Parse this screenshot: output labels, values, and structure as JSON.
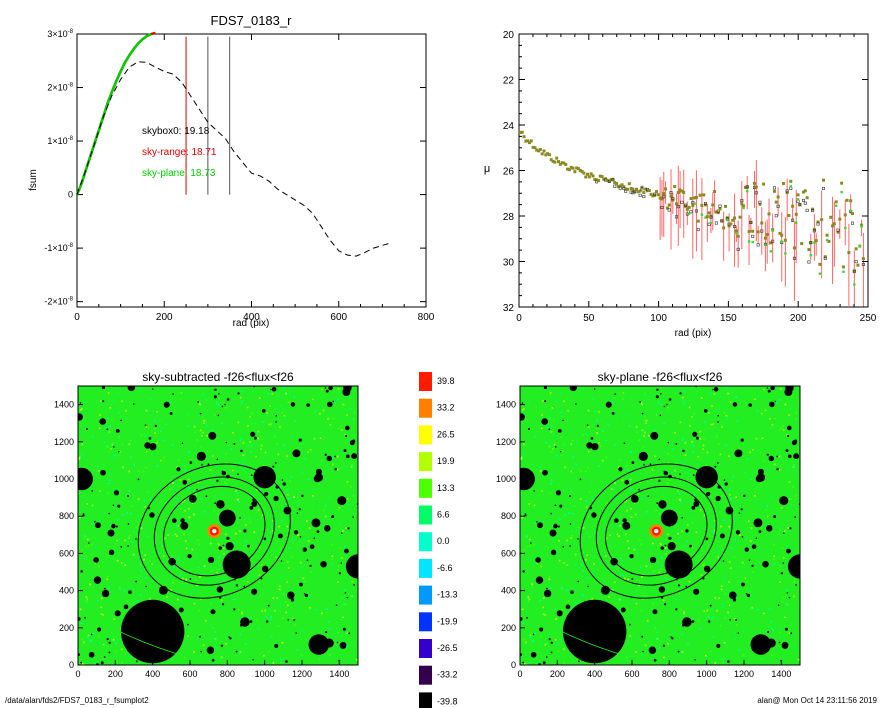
{
  "window": {
    "title": "FDS7_0183_r_fsumplot2"
  },
  "footer": {
    "path": "/data/alan/fds2/FDS7_0183_r_fsumplot2",
    "user_time": "alan@  Mon Oct 14 23:11:56 2019"
  },
  "colorbar": {
    "labels": [
      "39.8",
      "33.2",
      "26.5",
      "19.9",
      "13.3",
      "6.6",
      "0.0",
      "-6.6",
      "-13.3",
      "-19.9",
      "-26.5",
      "-33.2",
      "-39.8"
    ],
    "colors": [
      "#ff1a00",
      "#ff8000",
      "#ffff00",
      "#b2ff00",
      "#4dff00",
      "#00ff66",
      "#00ffcc",
      "#00e6ff",
      "#0099ff",
      "#0033ff",
      "#3300cc",
      "#33004d",
      "#000000"
    ]
  },
  "chart_data": [
    {
      "type": "line",
      "title": "FDS7_0183_r",
      "xlabel": "rad (pix)",
      "ylabel": "fsum",
      "xlim": [
        0,
        800
      ],
      "ylim": [
        -2.1e-08,
        3e-08
      ],
      "xticks": [
        0,
        200,
        400,
        600,
        800
      ],
      "yticks": [
        {
          "v": 3e-08,
          "m": "3",
          "e": "-8"
        },
        {
          "v": 2e-08,
          "m": "2",
          "e": "-8"
        },
        {
          "v": 1e-08,
          "m": "1",
          "e": "-8"
        },
        {
          "v": 0,
          "m": "0",
          "e": ""
        },
        {
          "v": -1e-08,
          "m": "-1",
          "e": "-8"
        },
        {
          "v": -2e-08,
          "m": "-2",
          "e": "-8"
        }
      ],
      "annotations": [
        {
          "text": "skybox0: 19.18",
          "color": "#000000"
        },
        {
          "text": "sky-range: 18.71",
          "color": "#e00000"
        },
        {
          "text": "sky-plane: 18.73",
          "color": "#00cc00"
        }
      ],
      "vlines": [
        {
          "x": 250,
          "color": "#e00000"
        },
        {
          "x": 300,
          "color": "#555555"
        },
        {
          "x": 350,
          "color": "#555555"
        }
      ],
      "series": [
        {
          "color": "#e00000",
          "style": "solid",
          "x": [
            0,
            10,
            20,
            30,
            40,
            50,
            60,
            70,
            80,
            90,
            100,
            110,
            120,
            130,
            140,
            150,
            160,
            170,
            180
          ],
          "y": [
            0,
            2e-09,
            4.5e-09,
            7e-09,
            9.5e-09,
            1.2e-08,
            1.45e-08,
            1.7e-08,
            1.92e-08,
            2.12e-08,
            2.3e-08,
            2.47e-08,
            2.6e-08,
            2.72e-08,
            2.82e-08,
            2.9e-08,
            2.96e-08,
            3e-08,
            3.02e-08
          ]
        },
        {
          "color": "#00cc00",
          "style": "solid",
          "x": [
            0,
            10,
            20,
            30,
            40,
            50,
            60,
            70,
            80,
            90,
            100,
            110,
            120,
            130,
            140,
            150,
            160,
            170
          ],
          "y": [
            0,
            2e-09,
            4.5e-09,
            7e-09,
            9.5e-09,
            1.2e-08,
            1.45e-08,
            1.7e-08,
            1.92e-08,
            2.12e-08,
            2.3e-08,
            2.47e-08,
            2.6e-08,
            2.72e-08,
            2.82e-08,
            2.9e-08,
            2.96e-08,
            3e-08
          ]
        },
        {
          "color": "#000000",
          "style": "dashed",
          "x": [
            0,
            20,
            40,
            60,
            80,
            100,
            120,
            140,
            160,
            180,
            200,
            220,
            240,
            260,
            280,
            300,
            320,
            340,
            360,
            380,
            400,
            420,
            440,
            460,
            480,
            500,
            520,
            540,
            560,
            580,
            600,
            620,
            640,
            660,
            680,
            700,
            720
          ],
          "y": [
            0,
            4.5e-09,
            9.5e-09,
            1.45e-08,
            1.85e-08,
            2.15e-08,
            2.38e-08,
            2.48e-08,
            2.47e-08,
            2.38e-08,
            2.3e-08,
            2.25e-08,
            2.1e-08,
            1.85e-08,
            1.6e-08,
            1.35e-08,
            1.2e-08,
            1.05e-08,
            8e-09,
            6e-09,
            4e-09,
            3.5e-09,
            2.5e-09,
            1e-09,
            0,
            -1e-09,
            -2e-09,
            -3.5e-09,
            -6e-09,
            -8.5e-09,
            -1.05e-08,
            -1.13e-08,
            -1.15e-08,
            -1.08e-08,
            -1e-08,
            -9.5e-09,
            -9e-09
          ]
        }
      ]
    },
    {
      "type": "scatter",
      "title": "",
      "xlabel": "rad (pix)",
      "ylabel": "μ",
      "xlim": [
        0,
        250
      ],
      "ylim": [
        20,
        32
      ],
      "y_inverted": true,
      "xticks": [
        0,
        50,
        100,
        150,
        200,
        250
      ],
      "yticks": [
        20,
        22,
        24,
        26,
        28,
        30,
        32
      ]
    },
    {
      "type": "heatmap",
      "title": "sky-subtracted -f26<flux<f26",
      "xlim": [
        0,
        1500
      ],
      "ylim": [
        0,
        1500
      ],
      "xticks": [
        0,
        200,
        400,
        600,
        800,
        1000,
        1200,
        1400
      ],
      "yticks": [
        0,
        200,
        400,
        600,
        800,
        1000,
        1200,
        1400
      ]
    },
    {
      "type": "heatmap",
      "title": "sky-plane -f26<flux<f26",
      "xlim": [
        0,
        1500
      ],
      "ylim": [
        0,
        1500
      ],
      "xticks": [
        0,
        200,
        400,
        600,
        800,
        1000,
        1200,
        1400
      ],
      "yticks": [
        0,
        200,
        400,
        600,
        800,
        1000,
        1200,
        1400
      ]
    }
  ]
}
